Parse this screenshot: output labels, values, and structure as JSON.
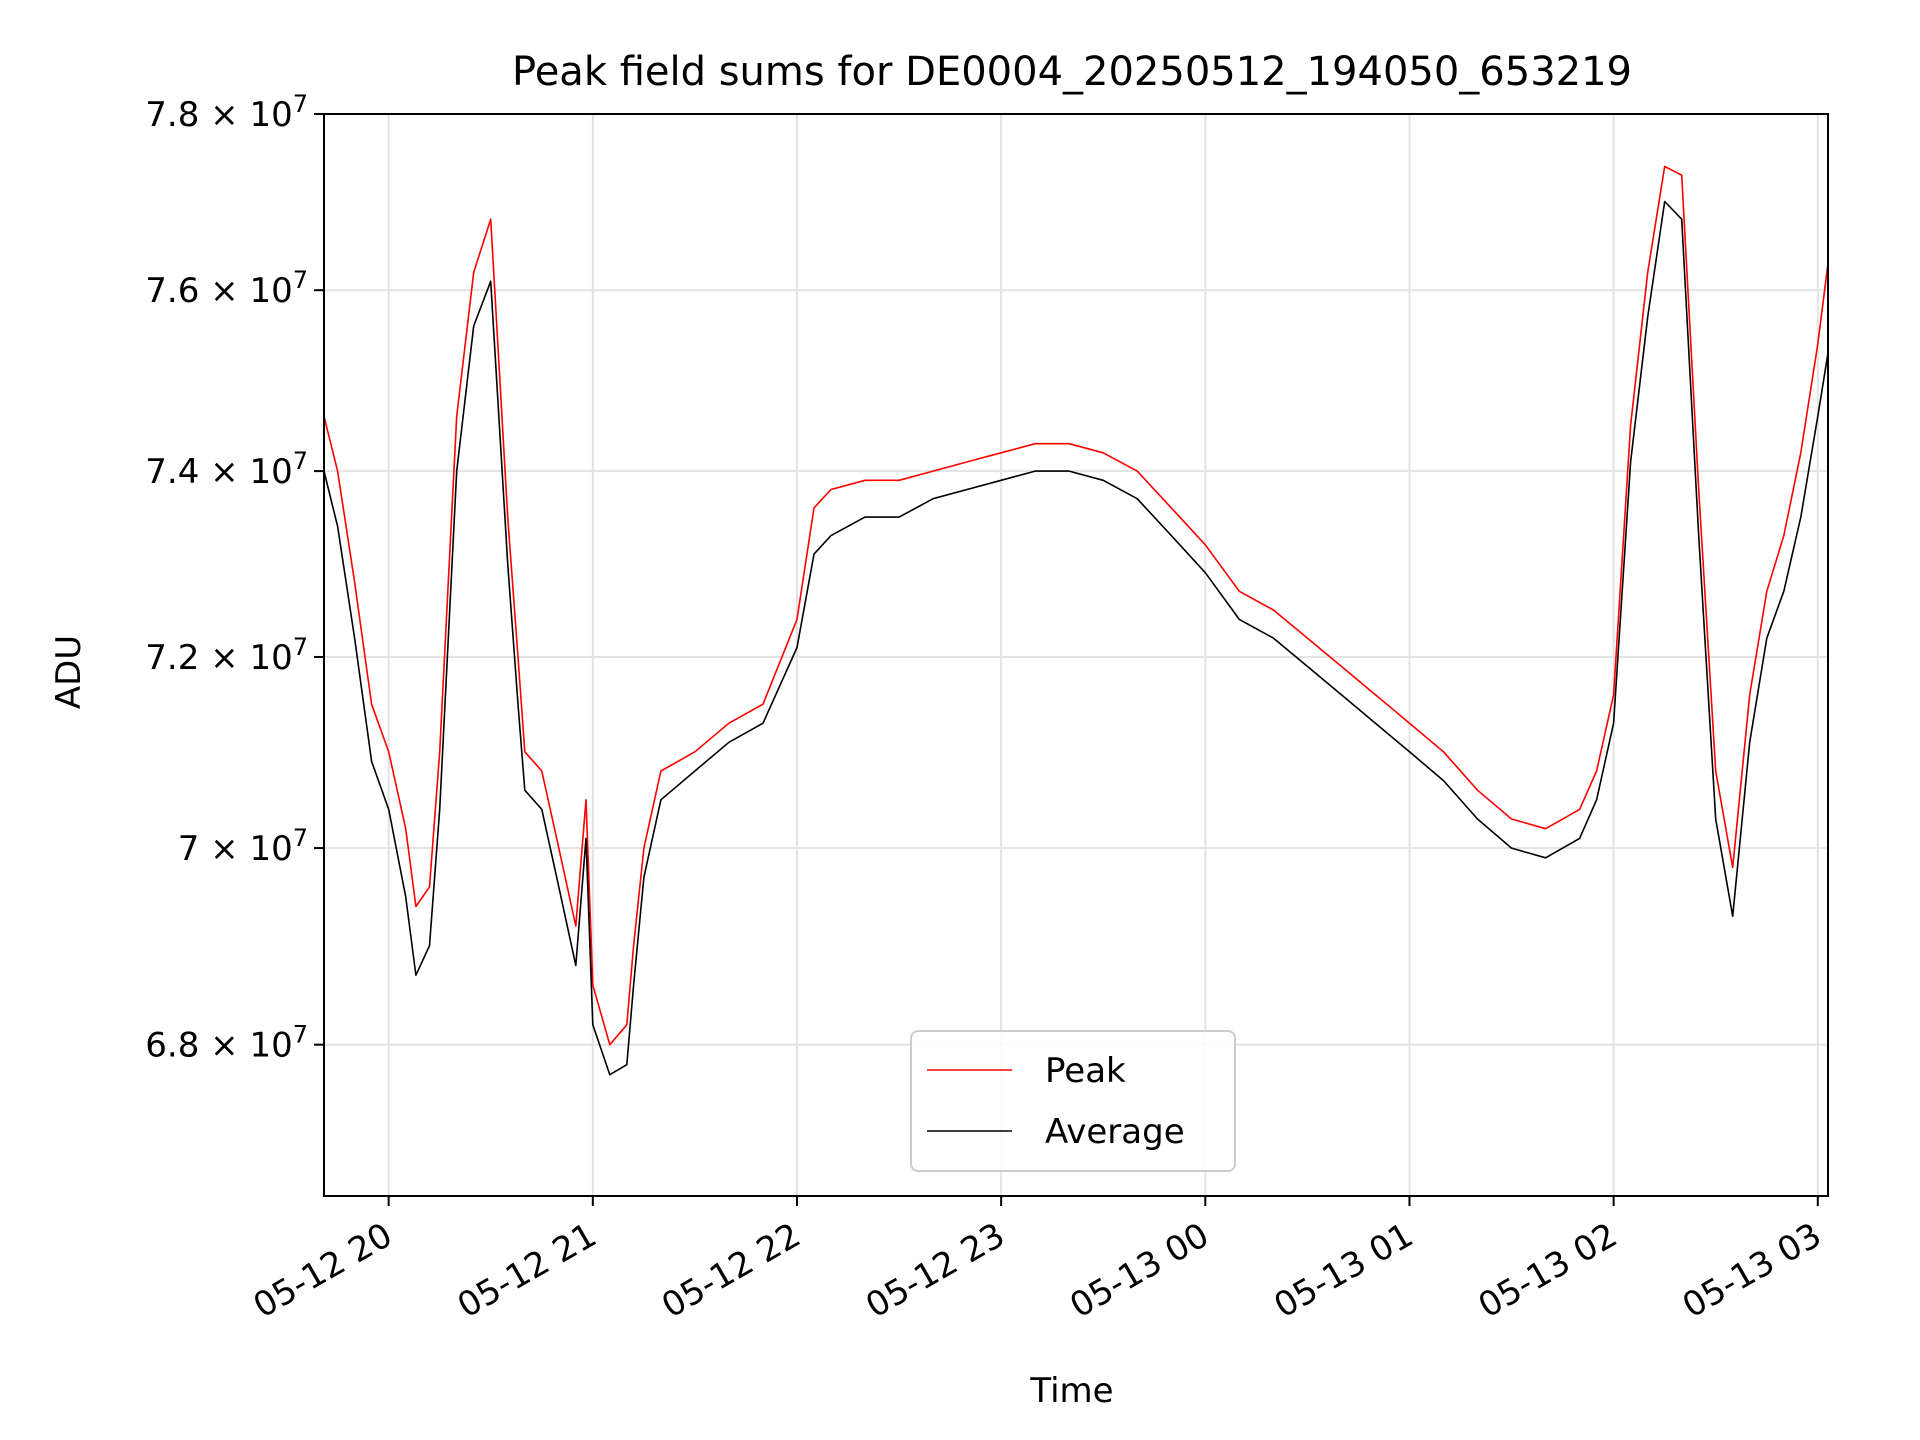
{
  "chart_data": {
    "type": "line",
    "title": "Peak field sums for DE0004_20250512_194050_653219",
    "xlabel": "Time",
    "ylabel": "ADU",
    "y_scale": "log",
    "grid": true,
    "legend_position": "lower center",
    "xlim": [
      "2025-05-12 19:41",
      "2025-05-13 03:03"
    ],
    "ylim": [
      66500000,
      78000000
    ],
    "x_ticks": [
      {
        "x": "2025-05-12 20:00",
        "label": "05-12 20"
      },
      {
        "x": "2025-05-12 21:00",
        "label": "05-12 21"
      },
      {
        "x": "2025-05-12 22:00",
        "label": "05-12 22"
      },
      {
        "x": "2025-05-12 23:00",
        "label": "05-12 23"
      },
      {
        "x": "2025-05-13 00:00",
        "label": "05-13 00"
      },
      {
        "x": "2025-05-13 01:00",
        "label": "05-13 01"
      },
      {
        "x": "2025-05-13 02:00",
        "label": "05-13 02"
      },
      {
        "x": "2025-05-13 03:00",
        "label": "05-13 03"
      }
    ],
    "y_ticks": [
      {
        "value": 68000000,
        "mantissa": "6.8",
        "exponent": "7"
      },
      {
        "value": 70000000,
        "mantissa": "7",
        "exponent": "7"
      },
      {
        "value": 72000000,
        "mantissa": "7.2",
        "exponent": "7"
      },
      {
        "value": 74000000,
        "mantissa": "7.4",
        "exponent": "7"
      },
      {
        "value": 76000000,
        "mantissa": "7.6",
        "exponent": "7"
      },
      {
        "value": 78000000,
        "mantissa": "7.8",
        "exponent": "7"
      }
    ],
    "series": [
      {
        "name": "Peak",
        "color": "#ff0000",
        "x": [
          "2025-05-12 19:41",
          "2025-05-12 19:45",
          "2025-05-12 19:50",
          "2025-05-12 19:55",
          "2025-05-12 20:00",
          "2025-05-12 20:05",
          "2025-05-12 20:08",
          "2025-05-12 20:12",
          "2025-05-12 20:15",
          "2025-05-12 20:20",
          "2025-05-12 20:25",
          "2025-05-12 20:30",
          "2025-05-12 20:35",
          "2025-05-12 20:38",
          "2025-05-12 20:40",
          "2025-05-12 20:45",
          "2025-05-12 20:50",
          "2025-05-12 20:55",
          "2025-05-12 20:58",
          "2025-05-12 21:00",
          "2025-05-12 21:05",
          "2025-05-12 21:10",
          "2025-05-12 21:12",
          "2025-05-12 21:15",
          "2025-05-12 21:20",
          "2025-05-12 21:30",
          "2025-05-12 21:40",
          "2025-05-12 21:50",
          "2025-05-12 22:00",
          "2025-05-12 22:05",
          "2025-05-12 22:10",
          "2025-05-12 22:20",
          "2025-05-12 22:30",
          "2025-05-12 22:40",
          "2025-05-12 22:50",
          "2025-05-12 23:00",
          "2025-05-12 23:10",
          "2025-05-12 23:20",
          "2025-05-12 23:30",
          "2025-05-12 23:40",
          "2025-05-12 23:50",
          "2025-05-13 00:00",
          "2025-05-13 00:10",
          "2025-05-13 00:20",
          "2025-05-13 00:30",
          "2025-05-13 00:40",
          "2025-05-13 00:50",
          "2025-05-13 01:00",
          "2025-05-13 01:10",
          "2025-05-13 01:20",
          "2025-05-13 01:30",
          "2025-05-13 01:40",
          "2025-05-13 01:50",
          "2025-05-13 01:55",
          "2025-05-13 02:00",
          "2025-05-13 02:05",
          "2025-05-13 02:10",
          "2025-05-13 02:15",
          "2025-05-13 02:20",
          "2025-05-13 02:25",
          "2025-05-13 02:30",
          "2025-05-13 02:35",
          "2025-05-13 02:40",
          "2025-05-13 02:45",
          "2025-05-13 02:50",
          "2025-05-13 02:55",
          "2025-05-13 03:00",
          "2025-05-13 03:03"
        ],
        "values": [
          74600000,
          74000000,
          72800000,
          71500000,
          71000000,
          70200000,
          69400000,
          69600000,
          71000000,
          74600000,
          76200000,
          76800000,
          73500000,
          72000000,
          71000000,
          70800000,
          70000000,
          69200000,
          70500000,
          68600000,
          68000000,
          68200000,
          69000000,
          70000000,
          70800000,
          71000000,
          71300000,
          71500000,
          72400000,
          73600000,
          73800000,
          73900000,
          73900000,
          74000000,
          74100000,
          74200000,
          74300000,
          74300000,
          74200000,
          74000000,
          73600000,
          73200000,
          72700000,
          72500000,
          72200000,
          71900000,
          71600000,
          71300000,
          71000000,
          70600000,
          70300000,
          70200000,
          70400000,
          70800000,
          71600000,
          74500000,
          76200000,
          77400000,
          77300000,
          73800000,
          70800000,
          69800000,
          71600000,
          72700000,
          73300000,
          74200000,
          75400000,
          76300000
        ]
      },
      {
        "name": "Average",
        "color": "#000000",
        "x": [
          "2025-05-12 19:41",
          "2025-05-12 19:45",
          "2025-05-12 19:50",
          "2025-05-12 19:55",
          "2025-05-12 20:00",
          "2025-05-12 20:05",
          "2025-05-12 20:08",
          "2025-05-12 20:12",
          "2025-05-12 20:15",
          "2025-05-12 20:20",
          "2025-05-12 20:25",
          "2025-05-12 20:30",
          "2025-05-12 20:35",
          "2025-05-12 20:38",
          "2025-05-12 20:40",
          "2025-05-12 20:45",
          "2025-05-12 20:50",
          "2025-05-12 20:55",
          "2025-05-12 20:58",
          "2025-05-12 21:00",
          "2025-05-12 21:05",
          "2025-05-12 21:10",
          "2025-05-12 21:12",
          "2025-05-12 21:15",
          "2025-05-12 21:20",
          "2025-05-12 21:30",
          "2025-05-12 21:40",
          "2025-05-12 21:50",
          "2025-05-12 22:00",
          "2025-05-12 22:05",
          "2025-05-12 22:10",
          "2025-05-12 22:20",
          "2025-05-12 22:30",
          "2025-05-12 22:40",
          "2025-05-12 22:50",
          "2025-05-12 23:00",
          "2025-05-12 23:10",
          "2025-05-12 23:20",
          "2025-05-12 23:30",
          "2025-05-12 23:40",
          "2025-05-12 23:50",
          "2025-05-13 00:00",
          "2025-05-13 00:10",
          "2025-05-13 00:20",
          "2025-05-13 00:30",
          "2025-05-13 00:40",
          "2025-05-13 00:50",
          "2025-05-13 01:00",
          "2025-05-13 01:10",
          "2025-05-13 01:20",
          "2025-05-13 01:30",
          "2025-05-13 01:40",
          "2025-05-13 01:50",
          "2025-05-13 01:55",
          "2025-05-13 02:00",
          "2025-05-13 02:05",
          "2025-05-13 02:10",
          "2025-05-13 02:15",
          "2025-05-13 02:20",
          "2025-05-13 02:25",
          "2025-05-13 02:30",
          "2025-05-13 02:35",
          "2025-05-13 02:40",
          "2025-05-13 02:45",
          "2025-05-13 02:50",
          "2025-05-13 02:55",
          "2025-05-13 03:00",
          "2025-05-13 03:03"
        ],
        "values": [
          74000000,
          73400000,
          72200000,
          70900000,
          70400000,
          69500000,
          68700000,
          69000000,
          70400000,
          74000000,
          75600000,
          76100000,
          73000000,
          71500000,
          70600000,
          70400000,
          69600000,
          68800000,
          70100000,
          68200000,
          67700000,
          67800000,
          68600000,
          69700000,
          70500000,
          70800000,
          71100000,
          71300000,
          72100000,
          73100000,
          73300000,
          73500000,
          73500000,
          73700000,
          73800000,
          73900000,
          74000000,
          74000000,
          73900000,
          73700000,
          73300000,
          72900000,
          72400000,
          72200000,
          71900000,
          71600000,
          71300000,
          71000000,
          70700000,
          70300000,
          70000000,
          69900000,
          70100000,
          70500000,
          71300000,
          74100000,
          75700000,
          77000000,
          76800000,
          73300000,
          70300000,
          69300000,
          71100000,
          72200000,
          72700000,
          73500000,
          74600000,
          75300000
        ]
      }
    ]
  }
}
